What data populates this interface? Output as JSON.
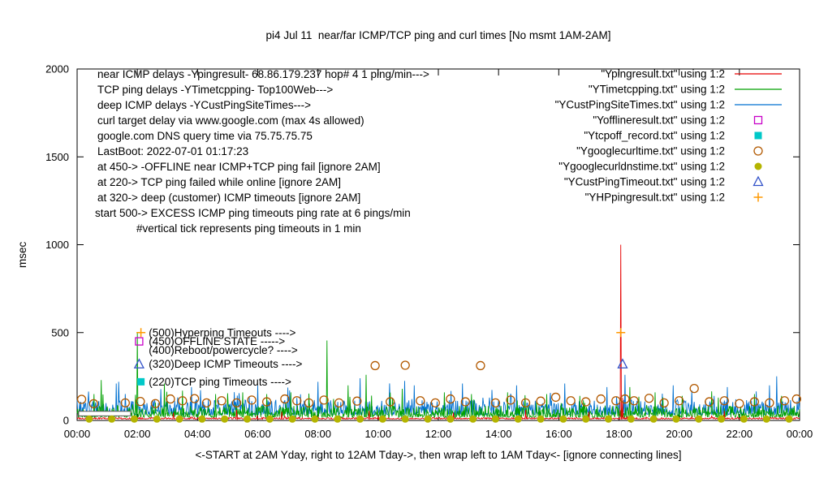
{
  "chart_data": {
    "type": "line",
    "title": "pi4 Jul 11  near/far ICMP/TCP ping and curl times [No msmt 1AM-2AM]",
    "ylabel": "msec",
    "xlabel": "<-START at 2AM Yday, right to 12AM Tday->, then wrap left to 1AM Tday<- [ignore connecting lines]",
    "xlim_hours": [
      0,
      24
    ],
    "ylim": [
      0,
      2000
    ],
    "y_ticks": [
      0,
      500,
      1000,
      1500,
      2000
    ],
    "x_ticks": [
      "00:00",
      "02:00",
      "04:00",
      "06:00",
      "08:00",
      "10:00",
      "12:00",
      "14:00",
      "16:00",
      "18:00",
      "20:00",
      "22:00",
      "00:00"
    ],
    "grid": false,
    "legend_position": "top-right-inside",
    "annotations_topleft": [
      {
        "text": "near ICMP delays -Ypingresult- 68.86.179.237 hop# 4 1 ping/min--->",
        "indent": 0
      },
      {
        "text": "TCP ping delays -YTimetcpping- Top100Web--->",
        "indent": 0
      },
      {
        "text": "deep ICMP delays -YCustPingSiteTimes--->",
        "indent": 0
      },
      {
        "text": "curl target delay via www.google.com (max 4s allowed)",
        "indent": 0
      },
      {
        "text": "google.com DNS query time via 75.75.75.75",
        "indent": 0
      },
      {
        "text": "LastBoot: 2022-07-01 01:17:23",
        "indent": 0
      },
      {
        "text": "at 450-> -OFFLINE near ICMP+TCP ping fail [ignore 2AM]",
        "indent": 0
      },
      {
        "text": "at 220-> TCP ping failed while online [ignore 2AM]",
        "indent": 0
      },
      {
        "text": "at 320-> deep (customer) ICMP timeouts [ignore 2AM]",
        "indent": 0
      },
      {
        "text": "start 500-> EXCESS ICMP ping timeouts ping rate at 6 pings/min",
        "indent": -3
      },
      {
        "text": "#vertical tick represents ping timeouts in 1 min",
        "indent": 48
      }
    ],
    "annotations_levels": [
      {
        "text": "(500)Hyperping Timeouts ---->",
        "value": 500
      },
      {
        "text": "(450)OFFLINE STATE ----->",
        "value": 450
      },
      {
        "text": "(400)Reboot/powercycle? ---->",
        "value": 400
      },
      {
        "text": "(320)Deep ICMP Timeouts ---->",
        "value": 320
      },
      {
        "text": "(220)TCP ping Timeouts ---->",
        "value": 220
      }
    ],
    "no_msmt_box": {
      "t0": 0.05,
      "t1": 1.78,
      "v0": 26,
      "v1": 52
    },
    "series": [
      {
        "name": "Ypingresult",
        "legend": "\"Ypingresult.txt\" using 1:2",
        "style": "line",
        "color": "#e60000",
        "baseline": 8,
        "noise": 9,
        "seed": 41,
        "spikes": [
          [
            3.2,
            45
          ],
          [
            5.3,
            60
          ],
          [
            6.8,
            50
          ],
          [
            9.7,
            55
          ],
          [
            12.5,
            45
          ],
          [
            14.9,
            60
          ],
          [
            17.0,
            50
          ],
          [
            18.05,
            1000
          ],
          [
            18.12,
            130
          ],
          [
            21.5,
            55
          ]
        ]
      },
      {
        "name": "YTimetcpping",
        "legend": "\"YTimetcpping.txt\" using 1:2",
        "style": "line",
        "color": "#00a000",
        "baseline": 18,
        "noise": 65,
        "seed": 42,
        "spikes": [
          [
            0.55,
            150
          ],
          [
            0.8,
            230
          ],
          [
            2.0,
            500
          ],
          [
            2.9,
            210
          ],
          [
            3.5,
            170
          ],
          [
            4.6,
            150
          ],
          [
            5.5,
            160
          ],
          [
            6.3,
            150
          ],
          [
            7.1,
            160
          ],
          [
            8.3,
            455
          ],
          [
            9.0,
            200
          ],
          [
            9.6,
            260
          ],
          [
            10.8,
            180
          ],
          [
            12.2,
            160
          ],
          [
            13.1,
            150
          ],
          [
            14.3,
            160
          ],
          [
            15.6,
            150
          ],
          [
            16.7,
            140
          ],
          [
            18.35,
            190
          ],
          [
            19.2,
            160
          ],
          [
            20.1,
            140
          ],
          [
            21.3,
            130
          ],
          [
            22.5,
            150
          ],
          [
            23.4,
            140
          ]
        ]
      },
      {
        "name": "YCustPingSiteTimes",
        "legend": "\"YCustPingSiteTimes.txt\" using 1:2",
        "style": "line",
        "color": "#0070d0",
        "baseline": 32,
        "noise": 85,
        "seed": 43,
        "spikes": [
          [
            1.3,
            210
          ],
          [
            3.8,
            190
          ],
          [
            6.0,
            200
          ],
          [
            8.0,
            220
          ],
          [
            9.4,
            240
          ],
          [
            11.2,
            200
          ],
          [
            12.8,
            210
          ],
          [
            14.6,
            200
          ],
          [
            16.2,
            210
          ],
          [
            17.6,
            190
          ],
          [
            18.2,
            260
          ],
          [
            19.8,
            200
          ],
          [
            21.6,
            190
          ],
          [
            23.0,
            200
          ]
        ]
      },
      {
        "name": "Yofflineresult",
        "legend": "\"Yofflineresult.txt\" using 1:2",
        "style": "points",
        "marker": "square-open",
        "color": "#c800c8",
        "points": [
          [
            2.06,
            450
          ]
        ]
      },
      {
        "name": "Ytcpoff_record",
        "legend": "\"Ytcpoff_record.txt\" using 1:2",
        "style": "points",
        "marker": "square-filled",
        "color": "#00c8c8",
        "points": [
          [
            2.12,
            220
          ]
        ]
      },
      {
        "name": "Ygooglecurltime",
        "legend": "\"Ygooglecurltime.txt\" using 1:2",
        "style": "points",
        "marker": "circle-open",
        "color": "#b25900",
        "points": [
          [
            0.15,
            120
          ],
          [
            0.55,
            95
          ],
          [
            1.6,
            100
          ],
          [
            2.1,
            108
          ],
          [
            2.6,
            96
          ],
          [
            3.1,
            122
          ],
          [
            3.5,
            112
          ],
          [
            3.9,
            124
          ],
          [
            4.3,
            100
          ],
          [
            4.8,
            112
          ],
          [
            5.3,
            100
          ],
          [
            5.8,
            116
          ],
          [
            6.3,
            106
          ],
          [
            6.9,
            122
          ],
          [
            7.3,
            112
          ],
          [
            7.7,
            100
          ],
          [
            8.2,
            116
          ],
          [
            8.7,
            100
          ],
          [
            9.3,
            110
          ],
          [
            9.9,
            312
          ],
          [
            10.4,
            106
          ],
          [
            10.9,
            314
          ],
          [
            11.4,
            112
          ],
          [
            11.9,
            100
          ],
          [
            12.4,
            122
          ],
          [
            12.9,
            106
          ],
          [
            13.4,
            312
          ],
          [
            13.9,
            100
          ],
          [
            14.4,
            116
          ],
          [
            14.9,
            100
          ],
          [
            15.4,
            110
          ],
          [
            15.9,
            132
          ],
          [
            16.4,
            112
          ],
          [
            16.9,
            106
          ],
          [
            17.4,
            122
          ],
          [
            17.9,
            112
          ],
          [
            18.2,
            122
          ],
          [
            18.5,
            112
          ],
          [
            19.0,
            126
          ],
          [
            19.5,
            100
          ],
          [
            20.0,
            112
          ],
          [
            20.5,
            182
          ],
          [
            21.0,
            106
          ],
          [
            21.5,
            112
          ],
          [
            22.0,
            96
          ],
          [
            22.5,
            106
          ],
          [
            23.0,
            100
          ],
          [
            23.5,
            112
          ],
          [
            23.9,
            122
          ]
        ]
      },
      {
        "name": "Ygooglecurldnstime",
        "legend": "\"Ygooglecurldnstime.txt\" using 1:2",
        "style": "points",
        "marker": "circle-filled",
        "color": "#b4b400",
        "points": [
          [
            0.4,
            8
          ],
          [
            1.15,
            8
          ],
          [
            1.9,
            8
          ],
          [
            2.65,
            8
          ],
          [
            3.4,
            8
          ],
          [
            4.15,
            8
          ],
          [
            4.9,
            8
          ],
          [
            5.65,
            8
          ],
          [
            6.4,
            8
          ],
          [
            7.15,
            8
          ],
          [
            7.9,
            8
          ],
          [
            8.65,
            8
          ],
          [
            9.4,
            8
          ],
          [
            10.15,
            8
          ],
          [
            10.9,
            8
          ],
          [
            11.65,
            8
          ],
          [
            12.4,
            8
          ],
          [
            13.15,
            8
          ],
          [
            13.9,
            8
          ],
          [
            14.65,
            8
          ],
          [
            15.4,
            8
          ],
          [
            16.15,
            8
          ],
          [
            16.9,
            8
          ],
          [
            17.65,
            8
          ],
          [
            18.4,
            8
          ],
          [
            19.15,
            8
          ],
          [
            19.9,
            8
          ],
          [
            20.65,
            8
          ],
          [
            21.4,
            8
          ],
          [
            22.15,
            8
          ],
          [
            22.9,
            8
          ],
          [
            23.65,
            8
          ]
        ]
      },
      {
        "name": "YCustPingTimeout",
        "legend": "\"YCustPingTimeout.txt\" using 1:2",
        "style": "points",
        "marker": "triangle-open",
        "color": "#3050c8",
        "points": [
          [
            2.06,
            320
          ],
          [
            18.12,
            320
          ]
        ]
      },
      {
        "name": "YHPpingresult",
        "legend": "\"YHPpingresult.txt\" using 1:2",
        "style": "points",
        "marker": "plus",
        "color": "#ff9900",
        "points": [
          [
            2.12,
            500
          ],
          [
            18.06,
            500
          ]
        ]
      }
    ]
  }
}
